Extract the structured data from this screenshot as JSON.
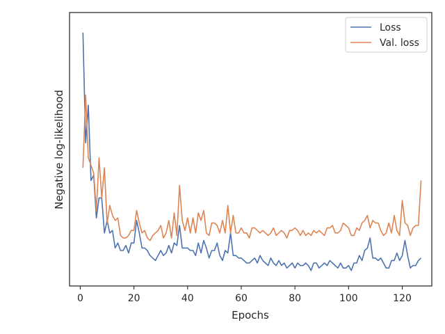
{
  "chart_data": {
    "type": "line",
    "title": "",
    "xlabel": "Epochs",
    "ylabel": "Negative log-likelihood",
    "xlim": [
      -4,
      131
    ],
    "ylim": [
      0,
      100
    ],
    "xticks": [
      0,
      20,
      40,
      60,
      80,
      100,
      120
    ],
    "y_tick_labels_shown": false,
    "grid": false,
    "legend_position": "top-right",
    "x": [
      1,
      2,
      3,
      4,
      5,
      6,
      7,
      8,
      9,
      10,
      11,
      12,
      13,
      14,
      15,
      16,
      17,
      18,
      19,
      20,
      21,
      22,
      23,
      24,
      25,
      26,
      27,
      28,
      29,
      30,
      31,
      32,
      33,
      34,
      35,
      36,
      37,
      38,
      39,
      40,
      41,
      42,
      43,
      44,
      45,
      46,
      47,
      48,
      49,
      50,
      51,
      52,
      53,
      54,
      55,
      56,
      57,
      58,
      59,
      60,
      61,
      62,
      63,
      64,
      65,
      66,
      67,
      68,
      69,
      70,
      71,
      72,
      73,
      74,
      75,
      76,
      77,
      78,
      79,
      80,
      81,
      82,
      83,
      84,
      85,
      86,
      87,
      88,
      89,
      90,
      91,
      92,
      93,
      94,
      95,
      96,
      97,
      98,
      99,
      100,
      101,
      102,
      103,
      104,
      105,
      106,
      107,
      108,
      109,
      110,
      111,
      112,
      113,
      114,
      115,
      116,
      117,
      118,
      119,
      120,
      121,
      122,
      123,
      124,
      125,
      126,
      127
    ],
    "series": [
      {
        "name": "Loss",
        "color": "#4c72b0",
        "values": [
          97,
          53,
          68,
          38,
          40,
          23,
          31,
          31,
          17,
          22,
          17,
          18,
          11,
          13,
          10,
          10,
          12,
          9,
          13,
          13,
          22,
          17,
          11,
          11,
          10,
          8,
          7,
          6,
          8,
          10,
          8,
          9,
          12,
          9,
          13,
          12,
          20,
          11,
          11,
          11,
          10,
          10,
          8,
          13,
          9,
          14,
          11,
          7,
          10,
          10,
          13,
          8,
          6,
          10,
          9,
          17,
          8,
          8,
          7,
          7,
          6,
          5,
          5,
          6,
          7,
          5,
          8,
          6,
          5,
          4,
          7,
          5,
          4,
          6,
          4,
          5,
          3,
          4,
          5,
          3,
          5,
          4,
          4,
          5,
          4,
          2,
          5,
          5,
          3,
          4,
          5,
          4,
          6,
          5,
          4,
          3,
          5,
          3,
          3,
          4,
          2,
          5,
          5,
          8,
          6,
          10,
          11,
          15,
          7,
          7,
          6,
          7,
          5,
          3,
          3,
          6,
          6,
          9,
          6,
          8,
          14,
          8,
          3,
          4,
          4,
          6,
          7
        ]
      },
      {
        "name": "Val. loss",
        "color": "#dd8452",
        "values": [
          43,
          72,
          47,
          44,
          41,
          26,
          47,
          31,
          43,
          21,
          28,
          24,
          22,
          23,
          16,
          15,
          15,
          16,
          18,
          18,
          26,
          21,
          17,
          18,
          15,
          14,
          16,
          17,
          18,
          20,
          15,
          17,
          22,
          15,
          25,
          16,
          36,
          22,
          18,
          23,
          17,
          23,
          17,
          25,
          22,
          26,
          17,
          16,
          21,
          21,
          20,
          17,
          22,
          17,
          28,
          17,
          24,
          17,
          17,
          19,
          17,
          17,
          15,
          19,
          19,
          18,
          17,
          18,
          17,
          16,
          17,
          19,
          16,
          17,
          18,
          17,
          15,
          18,
          18,
          19,
          18,
          16,
          18,
          16,
          17,
          16,
          18,
          17,
          18,
          17,
          16,
          19,
          19,
          20,
          17,
          17,
          18,
          21,
          20,
          19,
          16,
          16,
          19,
          18,
          21,
          22,
          24,
          19,
          22,
          21,
          21,
          18,
          16,
          17,
          21,
          17,
          24,
          18,
          16,
          30,
          21,
          20,
          16,
          19,
          20,
          20,
          38
        ]
      }
    ]
  }
}
